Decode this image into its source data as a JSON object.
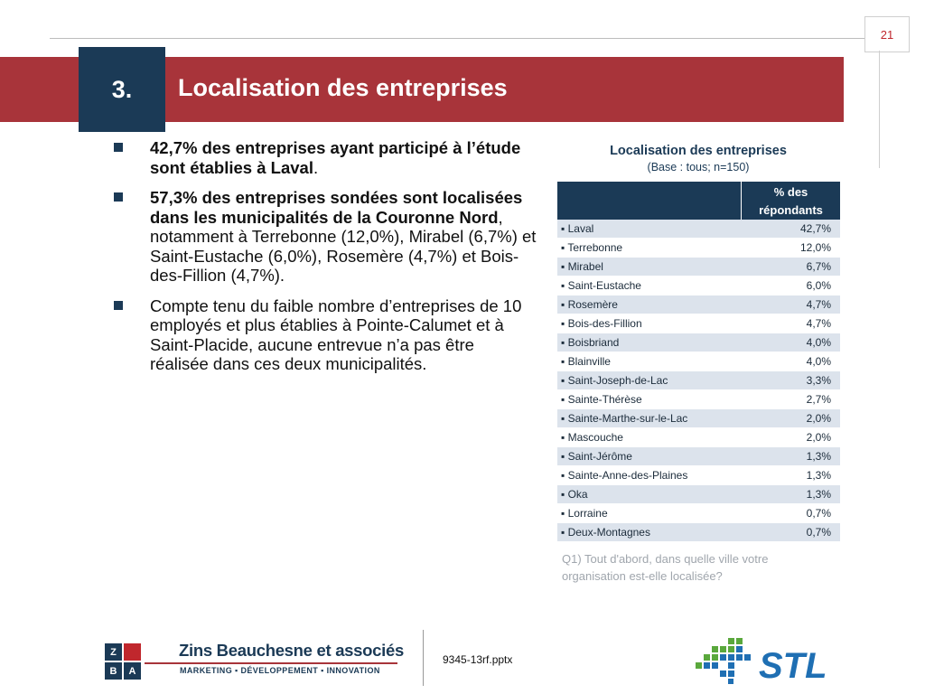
{
  "page_number": "21",
  "section": {
    "number": "3.",
    "title": "Localisation des entreprises"
  },
  "bullets": [
    {
      "bold": "42,7% des entreprises ayant participé à l’étude sont établies à Laval",
      "text": "."
    },
    {
      "bold": "57,3% des entreprises sondées sont localisées dans les municipalités de la Couronne Nord",
      "text": ", notamment à Terrebonne (12,0%), Mirabel (6,7%) et Saint-Eustache (6,0%), Rosemère (4,7%) et Bois-des-Fillion (4,7%)."
    },
    {
      "bold": "",
      "text": "Compte tenu du faible nombre d’entreprises de 10 employés et plus établies à Pointe-Calumet et à Saint-Placide, aucune entrevue n’a pas être réalisée dans ces deux municipalités."
    }
  ],
  "table": {
    "title": "Localisation des entreprises",
    "base": "(Base : tous; n=150)",
    "column_header": "% des répondants",
    "rows": [
      {
        "label": "Laval",
        "value": "42,7%"
      },
      {
        "label": "Terrebonne",
        "value": "12,0%"
      },
      {
        "label": "Mirabel",
        "value": "6,7%"
      },
      {
        "label": "Saint-Eustache",
        "value": "6,0%"
      },
      {
        "label": "Rosemère",
        "value": "4,7%"
      },
      {
        "label": "Bois-des-Fillion",
        "value": "4,7%"
      },
      {
        "label": "Boisbriand",
        "value": "4,0%"
      },
      {
        "label": "Blainville",
        "value": "4,0%"
      },
      {
        "label": "Saint-Joseph-de-Lac",
        "value": "3,3%"
      },
      {
        "label": "Sainte-Thérèse",
        "value": "2,7%"
      },
      {
        "label": "Sainte-Marthe-sur-le-Lac",
        "value": "2,0%"
      },
      {
        "label": "Mascouche",
        "value": "2,0%"
      },
      {
        "label": "Saint-Jérôme",
        "value": "1,3%"
      },
      {
        "label": "Sainte-Anne-des-Plaines",
        "value": "1,3%"
      },
      {
        "label": "Oka",
        "value": "1,3%"
      },
      {
        "label": "Lorraine",
        "value": "0,7%"
      },
      {
        "label": "Deux-Montagnes",
        "value": "0,7%"
      }
    ],
    "question": "Q1) Tout d'abord, dans quelle ville votre organisation est-elle localisée?"
  },
  "footer": {
    "logo_letters": [
      "Z",
      "",
      "B",
      "A"
    ],
    "firm_name": "Zins Beauchesne et associés",
    "tagline": "MARKETING ▪ DÉVELOPPEMENT ▪ INNOVATION",
    "filename": "9345-13rf.pptx",
    "stl_logo": "STL"
  },
  "colors": {
    "navy": "#1b3a56",
    "red": "#a8343a",
    "row_alt": "#dce3ec",
    "stl_blue": "#1f6fb3",
    "stl_green": "#5aa83c"
  }
}
